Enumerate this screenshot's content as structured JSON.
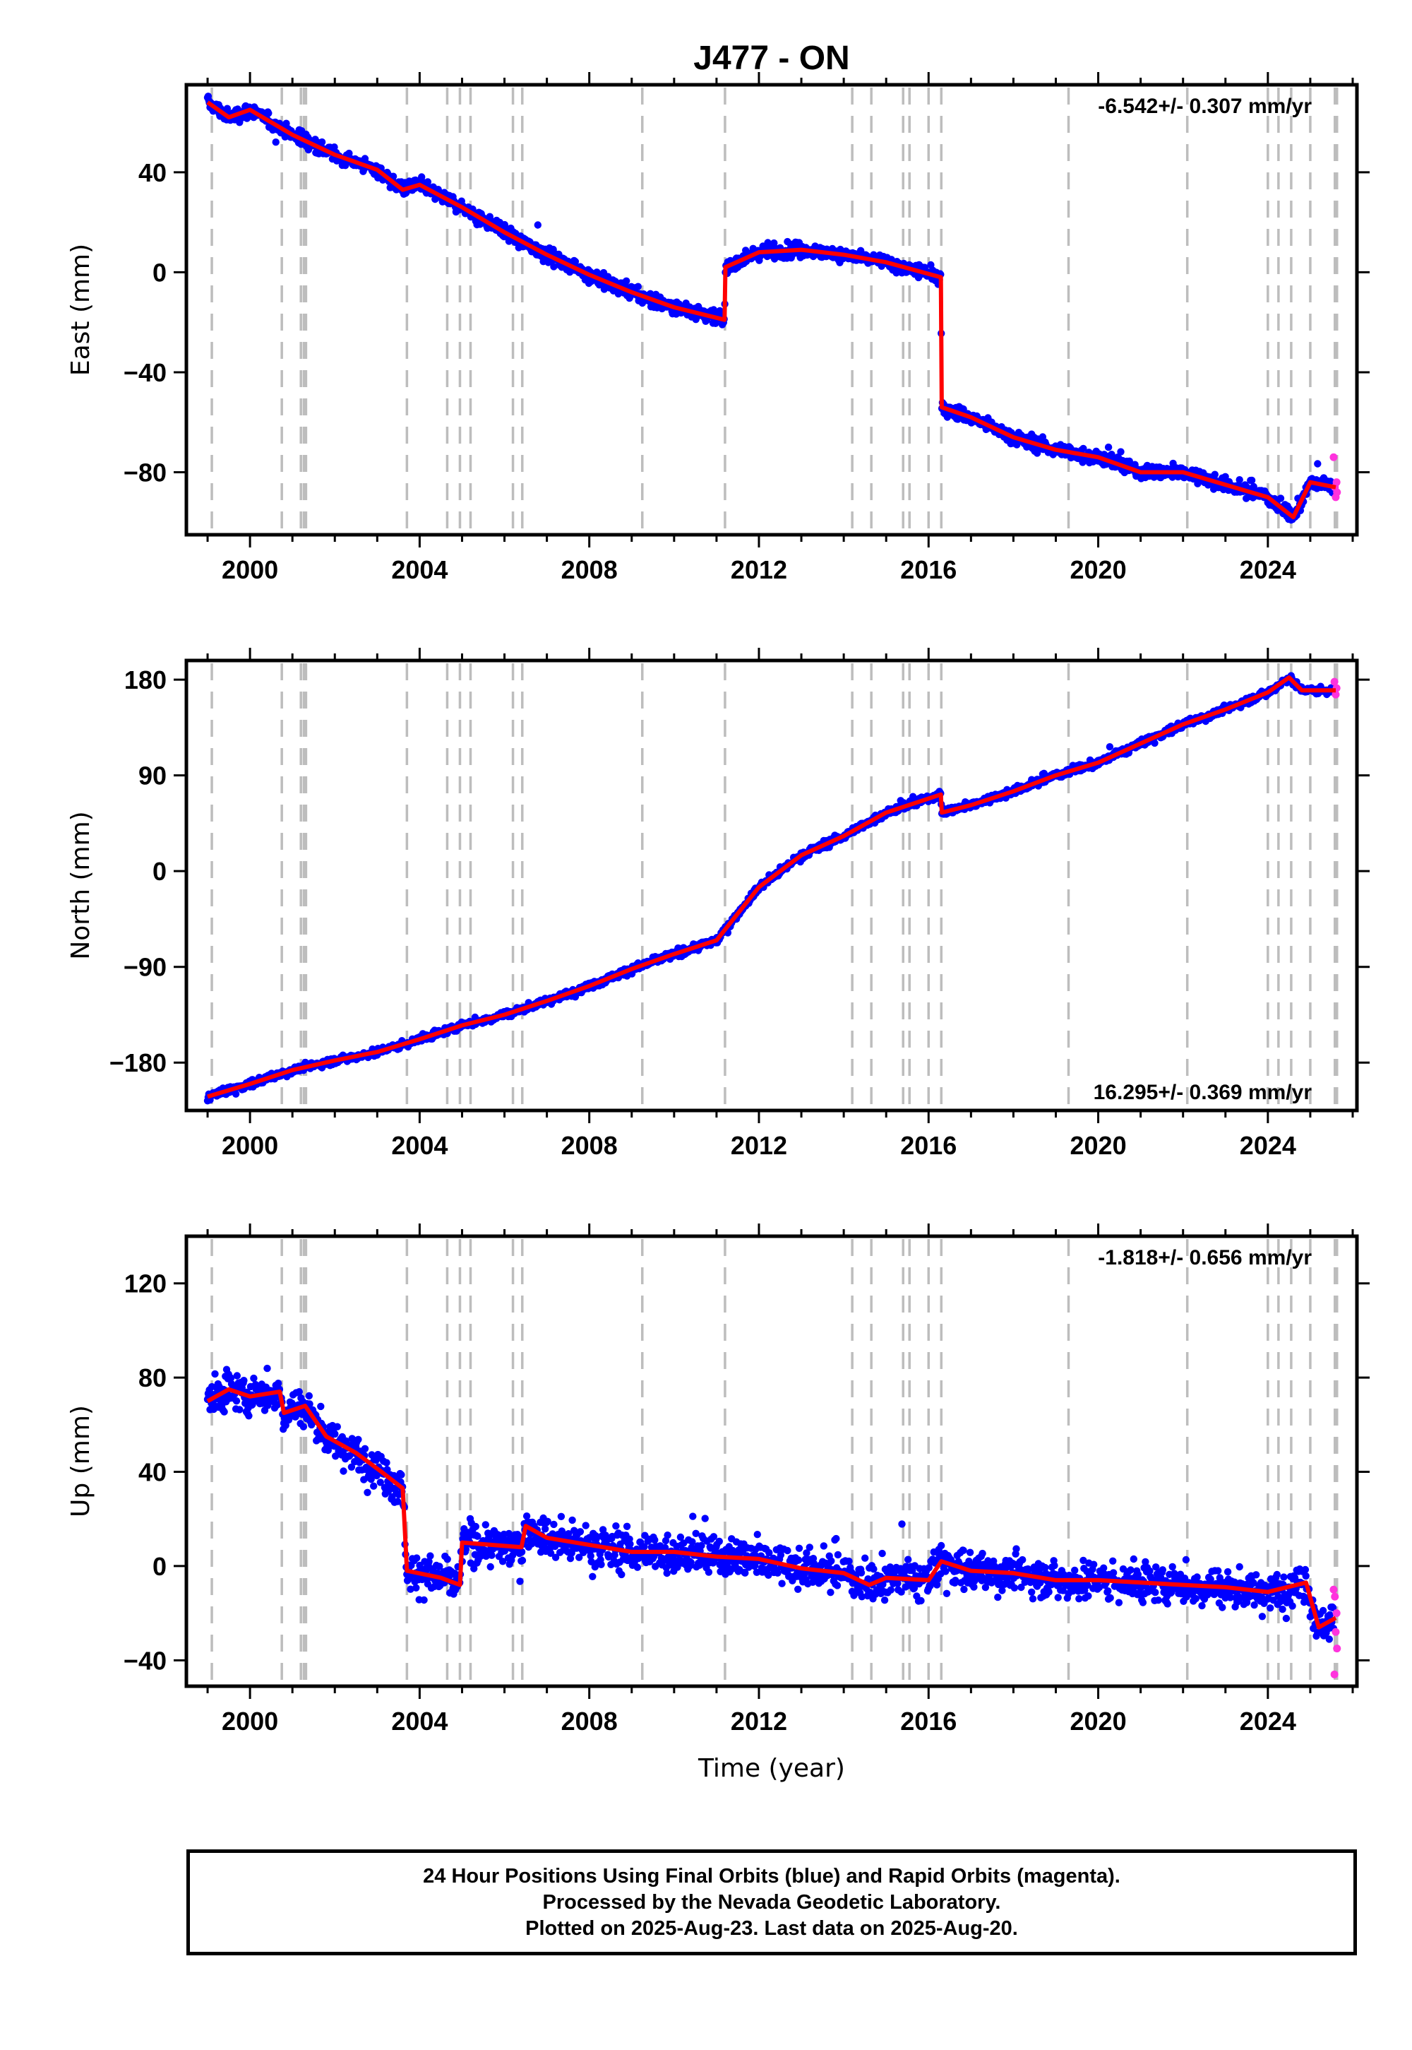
{
  "page_title": "J477 - ON",
  "colors": {
    "final_orbits": "#0000ff",
    "rapid_orbits": "#ff33dd",
    "model": "#ff0000",
    "event_lines": "#bdbdbd"
  },
  "footer": {
    "line1": "24 Hour Positions Using Final Orbits (blue) and Rapid Orbits (magenta).",
    "line2": "Processed by the Nevada Geodetic Laboratory.",
    "line3": "Plotted on 2025-Aug-23. Last data on 2025-Aug-20."
  },
  "event_lines": [
    1999.1,
    2000.75,
    2001.2,
    2001.27,
    2001.32,
    2003.7,
    2004.65,
    2004.95,
    2005.2,
    2006.2,
    2006.42,
    2009.25,
    2011.2,
    2014.2,
    2014.65,
    2015.4,
    2015.55,
    2016.0,
    2016.3,
    2019.3,
    2022.1,
    2024.0,
    2024.25,
    2024.55,
    2025.0,
    2025.58,
    2025.63
  ],
  "chart_data": [
    {
      "type": "scatter",
      "panel": "east",
      "ylabel": "East (mm)",
      "xlabel": "",
      "xlim": [
        1998.5,
        2026.1
      ],
      "ylim": [
        -105,
        75
      ],
      "x_ticks": [
        2000,
        2004,
        2008,
        2012,
        2016,
        2020,
        2024
      ],
      "y_ticks": [
        40,
        0,
        -40,
        -80
      ],
      "rate_text": "-6.542+/- 0.307 mm/yr",
      "rate_position": "top-right",
      "noise": 2.4,
      "steps": [
        {
          "x": 2011.2,
          "dy": 21
        },
        {
          "x": 2016.3,
          "dy": -52
        }
      ],
      "model": [
        [
          1999.0,
          68
        ],
        [
          1999.5,
          62
        ],
        [
          2000.0,
          65
        ],
        [
          2001.0,
          55
        ],
        [
          2002.0,
          47
        ],
        [
          2003.0,
          41
        ],
        [
          2003.6,
          33
        ],
        [
          2004.0,
          35
        ],
        [
          2005.0,
          26
        ],
        [
          2006.0,
          16
        ],
        [
          2007.0,
          7
        ],
        [
          2008.0,
          -1
        ],
        [
          2009.0,
          -8
        ],
        [
          2010.0,
          -14
        ],
        [
          2011.19,
          -19
        ],
        [
          2011.21,
          2
        ],
        [
          2012.0,
          8
        ],
        [
          2013.0,
          9
        ],
        [
          2014.0,
          7
        ],
        [
          2015.0,
          4
        ],
        [
          2016.29,
          -2
        ],
        [
          2016.31,
          -54
        ],
        [
          2017.0,
          -58
        ],
        [
          2018.0,
          -66
        ],
        [
          2019.0,
          -71
        ],
        [
          2020.0,
          -74
        ],
        [
          2021.0,
          -80
        ],
        [
          2022.0,
          -80
        ],
        [
          2023.0,
          -85
        ],
        [
          2024.0,
          -90
        ],
        [
          2024.6,
          -98
        ],
        [
          2025.0,
          -84
        ],
        [
          2025.6,
          -86
        ]
      ],
      "rapid": [
        [
          2025.55,
          -74
        ],
        [
          2025.58,
          -86
        ],
        [
          2025.6,
          -90
        ],
        [
          2025.62,
          -84
        ],
        [
          2025.63,
          -88
        ]
      ]
    },
    {
      "type": "scatter",
      "panel": "north",
      "ylabel": "North (mm)",
      "xlabel": "",
      "xlim": [
        1998.5,
        2026.1
      ],
      "ylim": [
        -225,
        198
      ],
      "x_ticks": [
        2000,
        2004,
        2008,
        2012,
        2016,
        2020,
        2024
      ],
      "y_ticks": [
        180,
        90,
        0,
        -90,
        -180
      ],
      "rate_text": "16.295+/- 0.369 mm/yr",
      "rate_position": "bottom-right",
      "noise": 3.0,
      "steps": [
        {
          "x": 2016.3,
          "dy": -18
        }
      ],
      "model": [
        [
          1999.0,
          -212
        ],
        [
          2000.0,
          -200
        ],
        [
          2001.0,
          -187
        ],
        [
          2002.0,
          -178
        ],
        [
          2003.0,
          -170
        ],
        [
          2004.0,
          -158
        ],
        [
          2005.0,
          -145
        ],
        [
          2006.0,
          -135
        ],
        [
          2007.0,
          -122
        ],
        [
          2008.0,
          -108
        ],
        [
          2009.0,
          -92
        ],
        [
          2010.0,
          -78
        ],
        [
          2011.0,
          -65
        ],
        [
          2011.5,
          -40
        ],
        [
          2012.0,
          -15
        ],
        [
          2013.0,
          15
        ],
        [
          2014.0,
          33
        ],
        [
          2015.0,
          55
        ],
        [
          2016.29,
          72
        ],
        [
          2016.31,
          55
        ],
        [
          2017.0,
          62
        ],
        [
          2018.0,
          75
        ],
        [
          2019.0,
          90
        ],
        [
          2020.0,
          102
        ],
        [
          2021.0,
          120
        ],
        [
          2022.0,
          138
        ],
        [
          2023.0,
          152
        ],
        [
          2024.0,
          168
        ],
        [
          2024.5,
          182
        ],
        [
          2024.8,
          170
        ],
        [
          2025.6,
          170
        ]
      ],
      "rapid": [
        [
          2025.57,
          178
        ],
        [
          2025.6,
          166
        ],
        [
          2025.62,
          172
        ]
      ]
    },
    {
      "type": "scatter",
      "panel": "up",
      "ylabel": "Up (mm)",
      "xlabel": "Time (year)",
      "xlim": [
        1998.5,
        2026.1
      ],
      "ylim": [
        -51,
        140
      ],
      "x_ticks": [
        2000,
        2004,
        2008,
        2012,
        2016,
        2020,
        2024
      ],
      "y_ticks": [
        120,
        80,
        40,
        0,
        -40
      ],
      "rate_text": "-1.818+/- 0.656 mm/yr",
      "rate_position": "top-right",
      "noise": 7.0,
      "steps": [
        {
          "x": 2003.1,
          "dy": -72
        },
        {
          "x": 2005.0,
          "dy": 9
        },
        {
          "x": 2006.42,
          "dy": 6
        }
      ],
      "model": [
        [
          1999.0,
          70
        ],
        [
          1999.5,
          75
        ],
        [
          2000.0,
          72
        ],
        [
          2000.7,
          74
        ],
        [
          2000.8,
          65
        ],
        [
          2001.3,
          68
        ],
        [
          2001.8,
          55
        ],
        [
          2002.5,
          48
        ],
        [
          2003.1,
          40
        ],
        [
          2003.6,
          33
        ],
        [
          2003.7,
          -2
        ],
        [
          2004.5,
          -5
        ],
        [
          2004.95,
          -8
        ],
        [
          2005.0,
          10
        ],
        [
          2006.4,
          8
        ],
        [
          2006.5,
          17
        ],
        [
          2007.0,
          12
        ],
        [
          2008.0,
          9
        ],
        [
          2009.0,
          6
        ],
        [
          2010.0,
          6
        ],
        [
          2011.0,
          4
        ],
        [
          2012.0,
          3
        ],
        [
          2013.0,
          -1
        ],
        [
          2014.0,
          -3
        ],
        [
          2014.6,
          -8
        ],
        [
          2015.0,
          -5
        ],
        [
          2016.0,
          -6
        ],
        [
          2016.3,
          2
        ],
        [
          2017.0,
          -2
        ],
        [
          2018.0,
          -3
        ],
        [
          2019.0,
          -6
        ],
        [
          2020.0,
          -6
        ],
        [
          2021.0,
          -7
        ],
        [
          2022.0,
          -8
        ],
        [
          2023.0,
          -9
        ],
        [
          2024.0,
          -11
        ],
        [
          2024.9,
          -7
        ],
        [
          2025.2,
          -26
        ],
        [
          2025.6,
          -22
        ]
      ],
      "rapid": [
        [
          2025.55,
          -10
        ],
        [
          2025.57,
          -46
        ],
        [
          2025.58,
          -13
        ],
        [
          2025.6,
          -28
        ],
        [
          2025.62,
          -20
        ],
        [
          2025.63,
          -35
        ]
      ]
    }
  ]
}
